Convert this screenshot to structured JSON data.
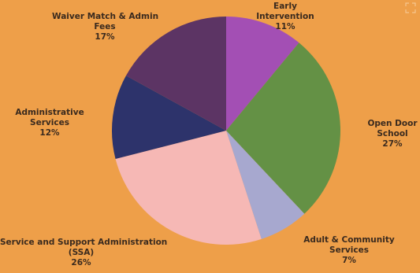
{
  "chart_data": {
    "type": "pie",
    "start_angle_deg": 0,
    "direction": "clockwise",
    "slices": [
      {
        "lines": [
          "Early",
          "Intervention"
        ],
        "value": 11,
        "value_label": "11%",
        "color": "#A34FB4"
      },
      {
        "lines": [
          "Open Door",
          "School"
        ],
        "value": 27,
        "value_label": "27%",
        "color": "#649145"
      },
      {
        "lines": [
          "Adult & Community",
          "Services"
        ],
        "value": 7,
        "value_label": "7%",
        "color": "#A7A8CF"
      },
      {
        "lines": [
          "Service and Support Administration",
          "(SSA)"
        ],
        "value": 26,
        "value_label": "26%",
        "color": "#F6B8B5"
      },
      {
        "lines": [
          "Administrative",
          "Services"
        ],
        "value": 12,
        "value_label": "12%",
        "color": "#2D336B"
      },
      {
        "lines": [
          "Waiver Match & Admin",
          "Fees"
        ],
        "value": 17,
        "value_label": "17%",
        "color": "#5C3464"
      }
    ],
    "background": "#EE9F49"
  },
  "icons": {
    "corner": "expand-icon"
  }
}
